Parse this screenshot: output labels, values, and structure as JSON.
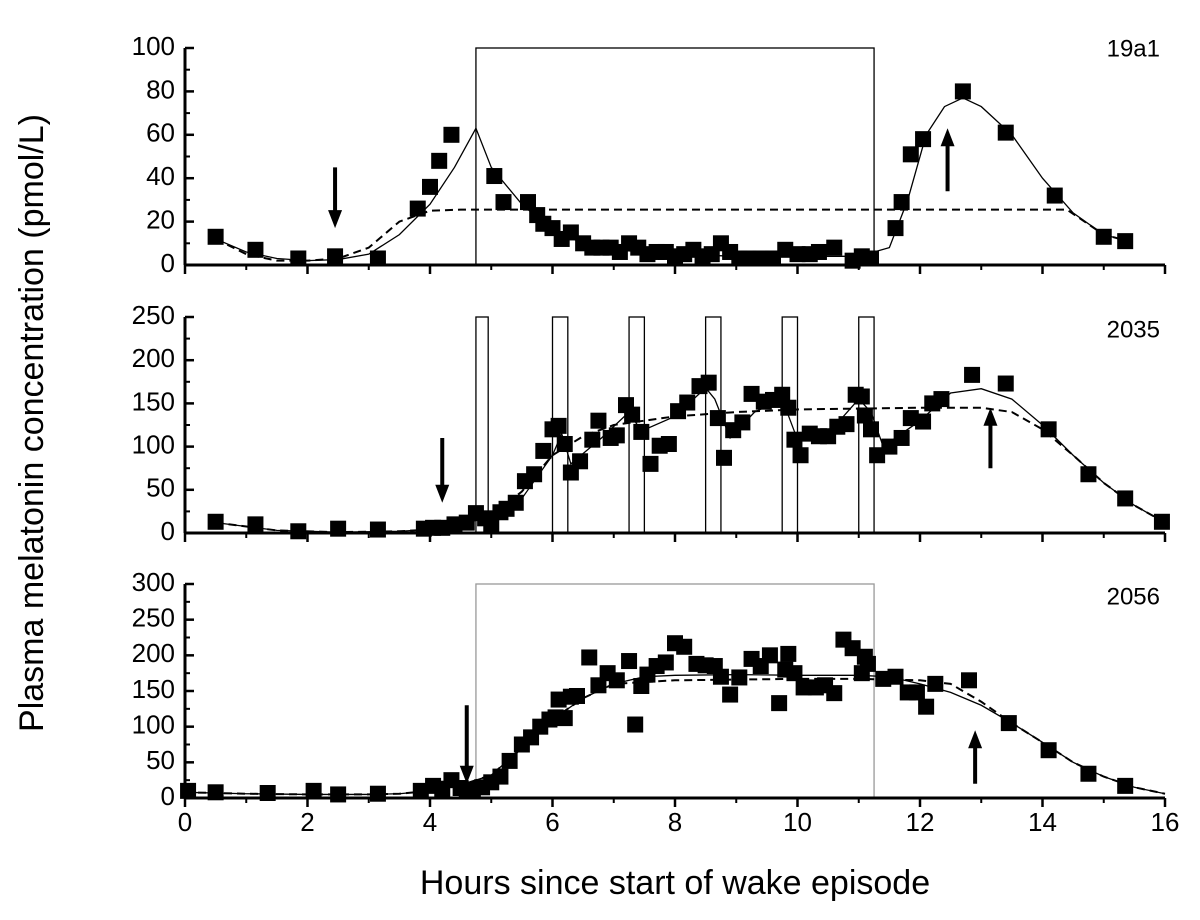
{
  "xlabel": "Hours since start of wake episode",
  "ylabel": "Plasma melatonin concentration (pmol/L)",
  "chart_data": [
    {
      "type": "scatter",
      "label": "19a1",
      "color": "#000000",
      "xlim": [
        0,
        16
      ],
      "xticks": [
        0,
        2,
        4,
        6,
        8,
        10,
        12,
        14,
        16
      ],
      "ylim": [
        0,
        100
      ],
      "yticks": [
        0,
        20,
        40,
        60,
        80,
        100
      ],
      "x": [
        0.5,
        1.15,
        1.85,
        2.45,
        3.15,
        3.8,
        4.0,
        4.15,
        4.35,
        5.05,
        5.2,
        5.6,
        5.75,
        5.85,
        6.0,
        6.15,
        6.3,
        6.5,
        6.65,
        6.8,
        6.95,
        7.1,
        7.25,
        7.4,
        7.55,
        7.7,
        7.85,
        8.0,
        8.15,
        8.3,
        8.45,
        8.6,
        8.75,
        8.9,
        9.05,
        9.2,
        9.4,
        9.6,
        9.8,
        10.0,
        10.2,
        10.35,
        10.6,
        10.9,
        11.05,
        11.2,
        11.6,
        11.7,
        11.85,
        12.05,
        12.7,
        13.4,
        14.2,
        15.0,
        15.35
      ],
      "values": [
        13,
        7,
        3,
        4,
        3,
        26,
        36,
        48,
        60,
        41,
        29,
        29,
        23,
        19,
        17,
        12,
        15,
        10,
        8,
        8,
        8,
        6,
        10,
        8,
        5,
        6,
        6,
        4,
        5,
        7,
        4,
        5,
        10,
        6,
        3,
        3,
        3,
        3,
        7,
        5,
        5,
        6,
        8,
        2,
        4,
        3,
        17,
        29,
        51,
        58,
        80,
        61,
        32,
        13,
        11
      ],
      "lines": [
        {
          "style": "solid",
          "x": [
            0.5,
            1,
            1.5,
            2,
            2.5,
            3,
            3.5,
            4,
            4.4,
            4.75,
            5,
            5.5,
            6,
            6.5,
            7,
            8,
            9,
            10,
            11,
            11.5,
            11.8,
            12.1,
            12.4,
            12.7,
            13,
            13.5,
            14,
            14.5,
            15,
            15.4
          ],
          "values": [
            12,
            6,
            3,
            2,
            2.5,
            5,
            14,
            28,
            45,
            63,
            45,
            28,
            16,
            10,
            7,
            5,
            4,
            4,
            4,
            8,
            30,
            60,
            73,
            77,
            73,
            60,
            40,
            24,
            14,
            11
          ]
        },
        {
          "style": "dashed",
          "x": [
            0.5,
            1,
            1.5,
            2,
            2.5,
            3,
            3.5,
            4,
            4.5,
            14.4,
            15,
            15.4
          ],
          "values": [
            12,
            5,
            2,
            2,
            3,
            8,
            20,
            25,
            25.5,
            25.5,
            14,
            11
          ]
        }
      ],
      "boxes": [
        [
          4.75,
          11.25
        ]
      ],
      "box_color": "#000000",
      "arrows": [
        {
          "x": 2.45,
          "y": [
            45,
            17
          ]
        },
        {
          "x": 12.45,
          "y": [
            34,
            63
          ]
        }
      ]
    },
    {
      "type": "scatter",
      "label": "2035",
      "color": "#000000",
      "xlim": [
        0,
        16
      ],
      "xticks": [
        0,
        2,
        4,
        6,
        8,
        10,
        12,
        14,
        16
      ],
      "ylim": [
        0,
        250
      ],
      "yticks": [
        0,
        50,
        100,
        150,
        200,
        250
      ],
      "x": [
        0.5,
        1.15,
        1.85,
        2.5,
        3.15,
        3.9,
        4.05,
        4.2,
        4.4,
        4.6,
        4.75,
        4.9,
        5.0,
        5.15,
        5.25,
        5.4,
        5.55,
        5.7,
        5.85,
        6.0,
        6.1,
        6.2,
        6.3,
        6.45,
        6.65,
        6.75,
        6.95,
        7.05,
        7.2,
        7.3,
        7.45,
        7.6,
        7.75,
        7.9,
        8.05,
        8.2,
        8.4,
        8.55,
        8.7,
        8.8,
        8.95,
        9.1,
        9.25,
        9.45,
        9.6,
        9.75,
        9.85,
        9.95,
        10.05,
        10.2,
        10.35,
        10.5,
        10.65,
        10.8,
        10.95,
        11.05,
        11.1,
        11.2,
        11.3,
        11.5,
        11.7,
        11.85,
        12.05,
        12.2,
        12.35,
        12.85,
        13.4,
        14.1,
        14.75,
        15.35,
        15.95
      ],
      "values": [
        13,
        10,
        2,
        5,
        4,
        5,
        6,
        6,
        10,
        12,
        23,
        17,
        8,
        24,
        28,
        35,
        60,
        68,
        95,
        120,
        124,
        103,
        70,
        83,
        108,
        130,
        110,
        113,
        148,
        137,
        117,
        80,
        101,
        103,
        141,
        151,
        170,
        174,
        133,
        87,
        119,
        128,
        161,
        152,
        154,
        160,
        145,
        108,
        90,
        115,
        112,
        112,
        123,
        126,
        160,
        158,
        136,
        120,
        90,
        100,
        110,
        133,
        129,
        150,
        155,
        183,
        173,
        120,
        68,
        40,
        13
      ],
      "lines": [
        {
          "style": "solid",
          "x": [
            0.5,
            1.5,
            2.5,
            3.5,
            4,
            4.5,
            4.75,
            5,
            5.5,
            6,
            6.15,
            6.3,
            6.8,
            7.25,
            7.45,
            8,
            8.5,
            8.65,
            8.9,
            9.3,
            9.75,
            10,
            10.5,
            11,
            11.2,
            11.4,
            12,
            12.5,
            13,
            13.5,
            14,
            14.5,
            15,
            15.5,
            16
          ],
          "values": [
            12,
            3,
            1,
            2,
            4,
            10,
            18,
            12,
            40,
            90,
            115,
            80,
            110,
            140,
            118,
            135,
            168,
            155,
            110,
            140,
            155,
            108,
            115,
            155,
            140,
            100,
            130,
            162,
            167,
            155,
            125,
            90,
            58,
            32,
            12
          ]
        },
        {
          "style": "dashed",
          "x": [
            0.5,
            1.5,
            2.5,
            3.5,
            4,
            4.5,
            5,
            5.5,
            6,
            6.5,
            7,
            8,
            9,
            10,
            11,
            12,
            13,
            13.5,
            14,
            14.5,
            15,
            15.5,
            16
          ],
          "values": [
            12,
            3,
            1,
            2,
            4,
            10,
            20,
            48,
            90,
            112,
            125,
            135,
            140,
            143,
            144,
            145,
            145,
            140,
            120,
            90,
            58,
            32,
            12
          ]
        }
      ],
      "boxes": [
        [
          4.75,
          4.95
        ],
        [
          6.0,
          6.25
        ],
        [
          7.25,
          7.5
        ],
        [
          8.5,
          8.75
        ],
        [
          9.75,
          10.0
        ],
        [
          11.0,
          11.25
        ]
      ],
      "box_color": "#000000",
      "arrows": [
        {
          "x": 4.2,
          "y": [
            110,
            35
          ]
        },
        {
          "x": 13.15,
          "y": [
            75,
            145
          ]
        }
      ]
    },
    {
      "type": "scatter",
      "label": "2056",
      "color": "#000000",
      "xlim": [
        0,
        16
      ],
      "xticks": [
        0,
        2,
        4,
        6,
        8,
        10,
        12,
        14,
        16
      ],
      "ylim": [
        0,
        300
      ],
      "yticks": [
        0,
        50,
        100,
        150,
        200,
        250,
        300
      ],
      "x": [
        0.05,
        0.5,
        1.35,
        2.1,
        2.5,
        3.15,
        3.85,
        4.05,
        4.2,
        4.35,
        4.5,
        4.6,
        4.7,
        4.85,
        5.0,
        5.15,
        5.3,
        5.5,
        5.65,
        5.8,
        5.95,
        6.05,
        6.1,
        6.2,
        6.3,
        6.4,
        6.6,
        6.75,
        6.9,
        7.05,
        7.25,
        7.35,
        7.45,
        7.55,
        7.7,
        7.85,
        8.0,
        8.15,
        8.35,
        8.5,
        8.65,
        8.75,
        8.9,
        9.05,
        9.25,
        9.4,
        9.55,
        9.7,
        9.8,
        9.85,
        9.95,
        10.1,
        10.3,
        10.45,
        10.6,
        10.75,
        10.9,
        11.05,
        11.1,
        11.15,
        11.4,
        11.6,
        11.8,
        11.95,
        12.1,
        12.25,
        12.8,
        13.45,
        14.1,
        14.75,
        15.35
      ],
      "values": [
        10,
        8,
        7,
        10,
        5,
        6,
        10,
        17,
        13,
        25,
        14,
        12,
        12,
        15,
        22,
        30,
        52,
        75,
        85,
        100,
        110,
        113,
        138,
        112,
        142,
        143,
        197,
        158,
        175,
        165,
        192,
        103,
        157,
        173,
        185,
        190,
        217,
        212,
        188,
        186,
        185,
        170,
        145,
        169,
        195,
        185,
        200,
        133,
        180,
        202,
        175,
        155,
        155,
        158,
        147,
        222,
        210,
        175,
        198,
        188,
        167,
        170,
        148,
        148,
        128,
        160,
        165,
        105,
        67,
        34,
        17
      ],
      "lines": [
        {
          "style": "solid",
          "x": [
            0,
            1,
            2,
            3,
            3.5,
            4,
            4.5,
            5,
            5.5,
            6,
            6.5,
            7,
            7.5,
            8,
            9,
            10,
            11,
            11.5,
            12,
            12.5,
            13,
            13.5,
            14,
            14.5,
            15,
            15.5,
            16
          ],
          "values": [
            8,
            6,
            5,
            5,
            6,
            10,
            18,
            32,
            70,
            110,
            140,
            160,
            170,
            172,
            173,
            172,
            172,
            170,
            160,
            148,
            130,
            105,
            78,
            50,
            30,
            15,
            6
          ]
        },
        {
          "style": "dashed",
          "x": [
            0,
            1,
            2,
            3,
            3.5,
            4,
            4.5,
            5,
            5.5,
            6,
            6.5,
            7,
            8,
            9,
            10,
            11,
            12,
            12.5,
            13,
            13.5,
            14,
            14.5,
            15,
            15.5,
            16
          ],
          "values": [
            8,
            6,
            5,
            5,
            6,
            10,
            18,
            32,
            70,
            110,
            140,
            160,
            165,
            166,
            167,
            167,
            165,
            160,
            135,
            105,
            78,
            50,
            30,
            15,
            6
          ]
        }
      ],
      "boxes": [
        [
          4.75,
          11.25
        ]
      ],
      "box_color": "#999999",
      "arrows": [
        {
          "x": 4.6,
          "y": [
            130,
            20
          ]
        },
        {
          "x": 12.9,
          "y": [
            20,
            95
          ]
        }
      ]
    }
  ]
}
